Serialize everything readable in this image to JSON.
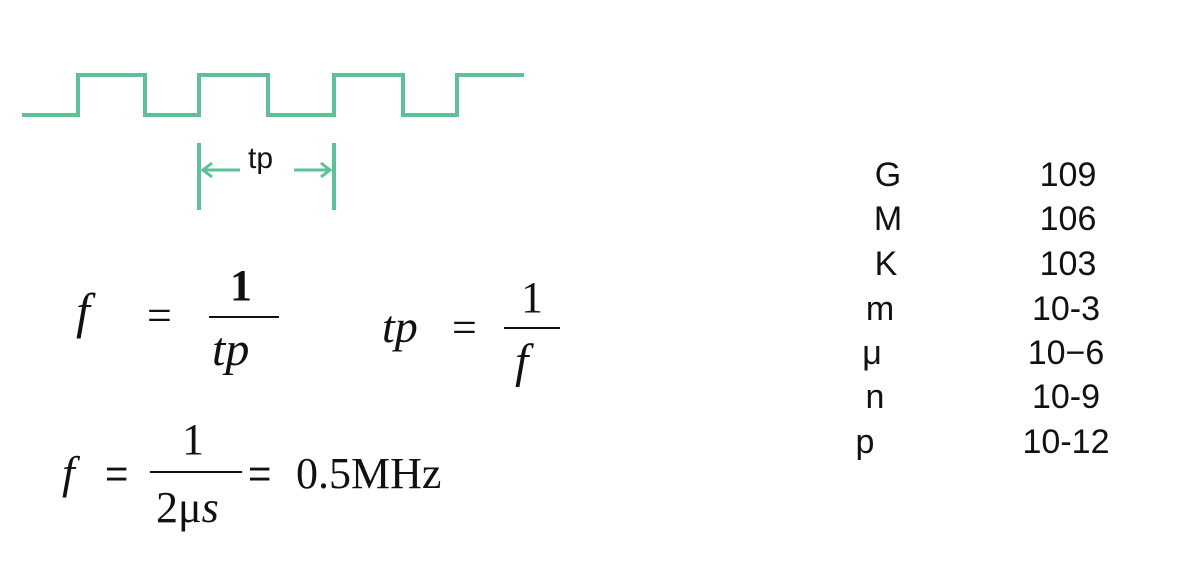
{
  "colors": {
    "wave": "#5ec096",
    "text": "#111111"
  },
  "waveform": {
    "period_label": "tp"
  },
  "formula1": {
    "lhs": "f",
    "eq": "=",
    "num": "1",
    "den": "tp"
  },
  "formula2": {
    "lhs": "tp",
    "eq": "=",
    "num": "1",
    "den": "f"
  },
  "formula3": {
    "lhs": "f",
    "eq": "=",
    "num": "1",
    "den_prefix": "2μ",
    "den_unit": "s",
    "eq2": "=",
    "result": "0.5MHz"
  },
  "prefixes": [
    {
      "symbol": "G",
      "value": "109"
    },
    {
      "symbol": "M",
      "value": "106"
    },
    {
      "symbol": "K",
      "value": "103"
    },
    {
      "symbol": "m",
      "value": "10-3"
    },
    {
      "symbol": "μ",
      "value": "10−6"
    },
    {
      "symbol": "n",
      "value": "10-9"
    },
    {
      "symbol": "p",
      "value": "10-12"
    }
  ]
}
